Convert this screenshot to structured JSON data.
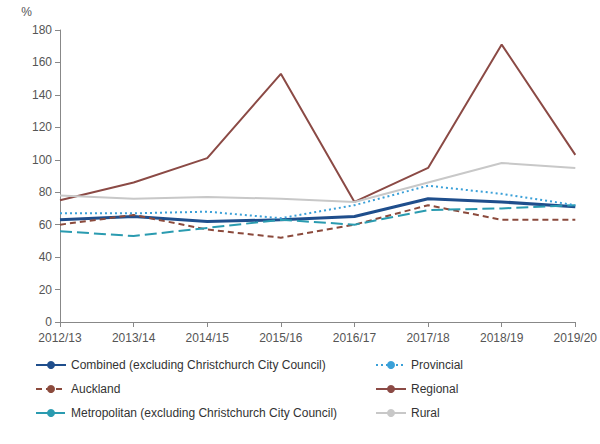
{
  "chart_data": {
    "type": "line",
    "y_label": "%",
    "categories": [
      "2012/13",
      "2013/14",
      "2014/15",
      "2015/16",
      "2016/17",
      "2017/18",
      "2018/19",
      "2019/20"
    ],
    "series": [
      {
        "name": "Combined (excluding Christchurch City Council)",
        "color": "#1f4e8c",
        "line_style": "solid",
        "values": [
          63,
          65,
          62,
          63,
          65,
          76,
          74,
          71
        ]
      },
      {
        "name": "Auckland",
        "color": "#8b4a3c",
        "line_style": "dashed",
        "values": [
          60,
          66,
          57,
          52,
          60,
          72,
          63,
          63
        ]
      },
      {
        "name": "Metropolitan (excluding Christchurch City Council)",
        "color": "#2a9bb0",
        "line_style": "longdash",
        "values": [
          56,
          53,
          58,
          63,
          60,
          69,
          70,
          72
        ]
      },
      {
        "name": "Provincial",
        "color": "#3aa0d8",
        "line_style": "dotted",
        "values": [
          67,
          67,
          68,
          64,
          72,
          84,
          79,
          72
        ]
      },
      {
        "name": "Regional",
        "color": "#8b4a45",
        "line_style": "solid",
        "values": [
          75,
          86,
          101,
          153,
          74,
          95,
          171,
          103
        ]
      },
      {
        "name": "Rural",
        "color": "#c8c8c8",
        "line_style": "solid",
        "values": [
          78,
          76,
          77,
          76,
          74,
          86,
          98,
          95
        ]
      }
    ],
    "ylim": [
      0,
      180
    ],
    "yticks": [
      0,
      20,
      40,
      60,
      80,
      100,
      120,
      140,
      160,
      180
    ],
    "grid": false,
    "legend": "bottom"
  }
}
